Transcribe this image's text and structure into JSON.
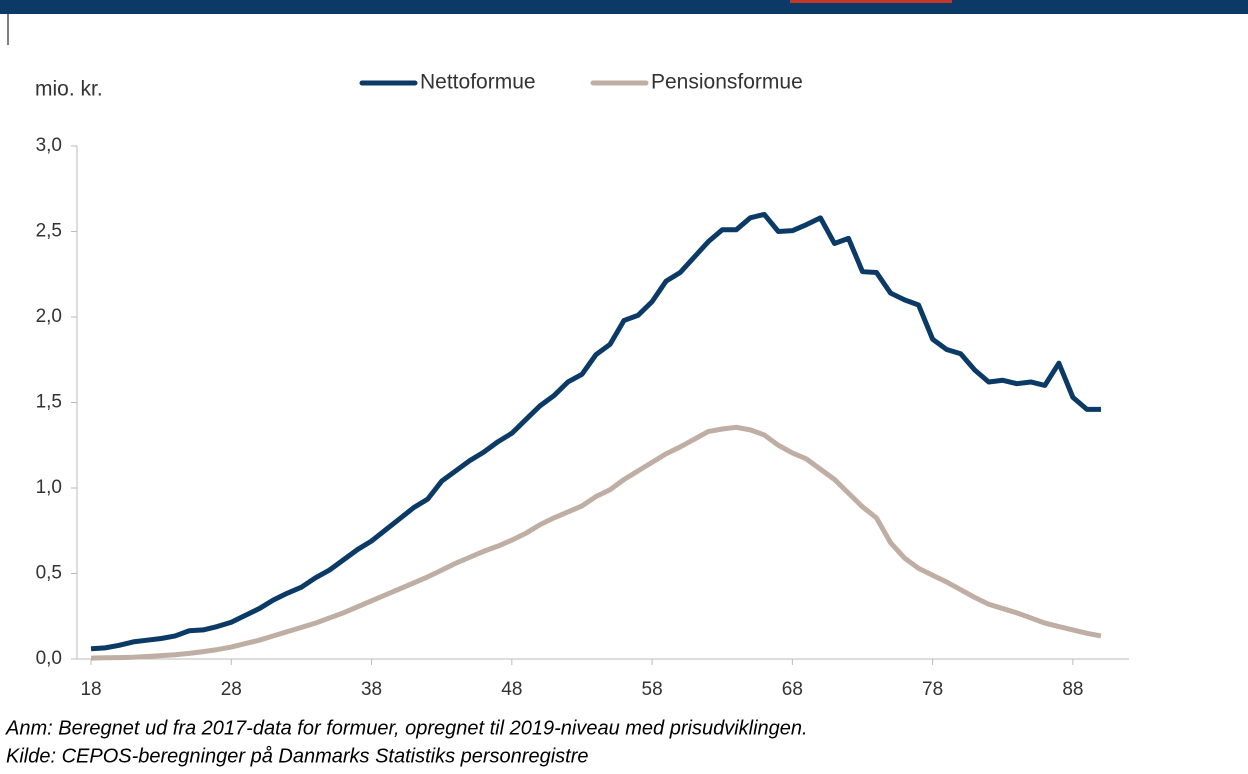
{
  "chart_data": {
    "type": "line",
    "y_label": "mio. kr.",
    "x": [
      18,
      19,
      20,
      21,
      22,
      23,
      24,
      25,
      26,
      27,
      28,
      29,
      30,
      31,
      32,
      33,
      34,
      35,
      36,
      37,
      38,
      39,
      40,
      41,
      42,
      43,
      44,
      45,
      46,
      47,
      48,
      49,
      50,
      51,
      52,
      53,
      54,
      55,
      56,
      57,
      58,
      59,
      60,
      61,
      62,
      63,
      64,
      65,
      66,
      67,
      68,
      69,
      70,
      71,
      72,
      73,
      74,
      75,
      76,
      77,
      78,
      79,
      80,
      81,
      82,
      83,
      84,
      85,
      86,
      87,
      88,
      89,
      90
    ],
    "series": [
      {
        "name": "Nettoformue",
        "color": "#0b3a66",
        "values": [
          0.06,
          0.065,
          0.08,
          0.1,
          0.11,
          0.12,
          0.135,
          0.165,
          0.17,
          0.19,
          0.215,
          0.255,
          0.295,
          0.345,
          0.385,
          0.42,
          0.475,
          0.52,
          0.58,
          0.64,
          0.69,
          0.755,
          0.82,
          0.885,
          0.935,
          1.04,
          1.1,
          1.16,
          1.21,
          1.27,
          1.32,
          1.4,
          1.48,
          1.54,
          1.62,
          1.665,
          1.78,
          1.84,
          1.98,
          2.01,
          2.09,
          2.21,
          2.26,
          2.35,
          2.44,
          2.51,
          2.51,
          2.58,
          2.6,
          2.5,
          2.505,
          2.54,
          2.58,
          2.43,
          2.46,
          2.265,
          2.26,
          2.14,
          2.1,
          2.07,
          1.87,
          1.81,
          1.785,
          1.69,
          1.62,
          1.63,
          1.61,
          1.62,
          1.6,
          1.73,
          1.53,
          1.46,
          1.46
        ]
      },
      {
        "name": "Pensionsformue",
        "color": "#bfaea3",
        "values": [
          0.005,
          0.007,
          0.008,
          0.01,
          0.015,
          0.02,
          0.025,
          0.033,
          0.043,
          0.055,
          0.07,
          0.09,
          0.11,
          0.135,
          0.16,
          0.185,
          0.21,
          0.24,
          0.27,
          0.305,
          0.34,
          0.375,
          0.41,
          0.445,
          0.48,
          0.52,
          0.56,
          0.595,
          0.63,
          0.66,
          0.695,
          0.735,
          0.785,
          0.825,
          0.86,
          0.895,
          0.95,
          0.99,
          1.05,
          1.1,
          1.15,
          1.2,
          1.24,
          1.285,
          1.33,
          1.345,
          1.355,
          1.34,
          1.31,
          1.25,
          1.205,
          1.17,
          1.11,
          1.05,
          0.97,
          0.89,
          0.825,
          0.68,
          0.59,
          0.53,
          0.49,
          0.45,
          0.405,
          0.36,
          0.32,
          0.295,
          0.27,
          0.24,
          0.21,
          0.19,
          0.17,
          0.15,
          0.135
        ]
      }
    ],
    "xlim": [
      17,
      92
    ],
    "xticks": [
      18,
      28,
      38,
      48,
      58,
      68,
      78,
      88
    ],
    "ylim": [
      0,
      3
    ],
    "yticks": [
      {
        "value": 0,
        "label": "0,0"
      },
      {
        "value": 0.5,
        "label": "0,5"
      },
      {
        "value": 1,
        "label": "1,0"
      },
      {
        "value": 1.5,
        "label": "1,5"
      },
      {
        "value": 2,
        "label": "2,0"
      },
      {
        "value": 2.5,
        "label": "2,5"
      },
      {
        "value": 3,
        "label": "3,0"
      }
    ],
    "notes": [
      "Anm: Beregnet ud fra 2017-data for formuer, opregnet til 2019-niveau med prisudviklingen.",
      "Kilde: CEPOS-beregninger på Danmarks Statistiks personregistre"
    ]
  }
}
